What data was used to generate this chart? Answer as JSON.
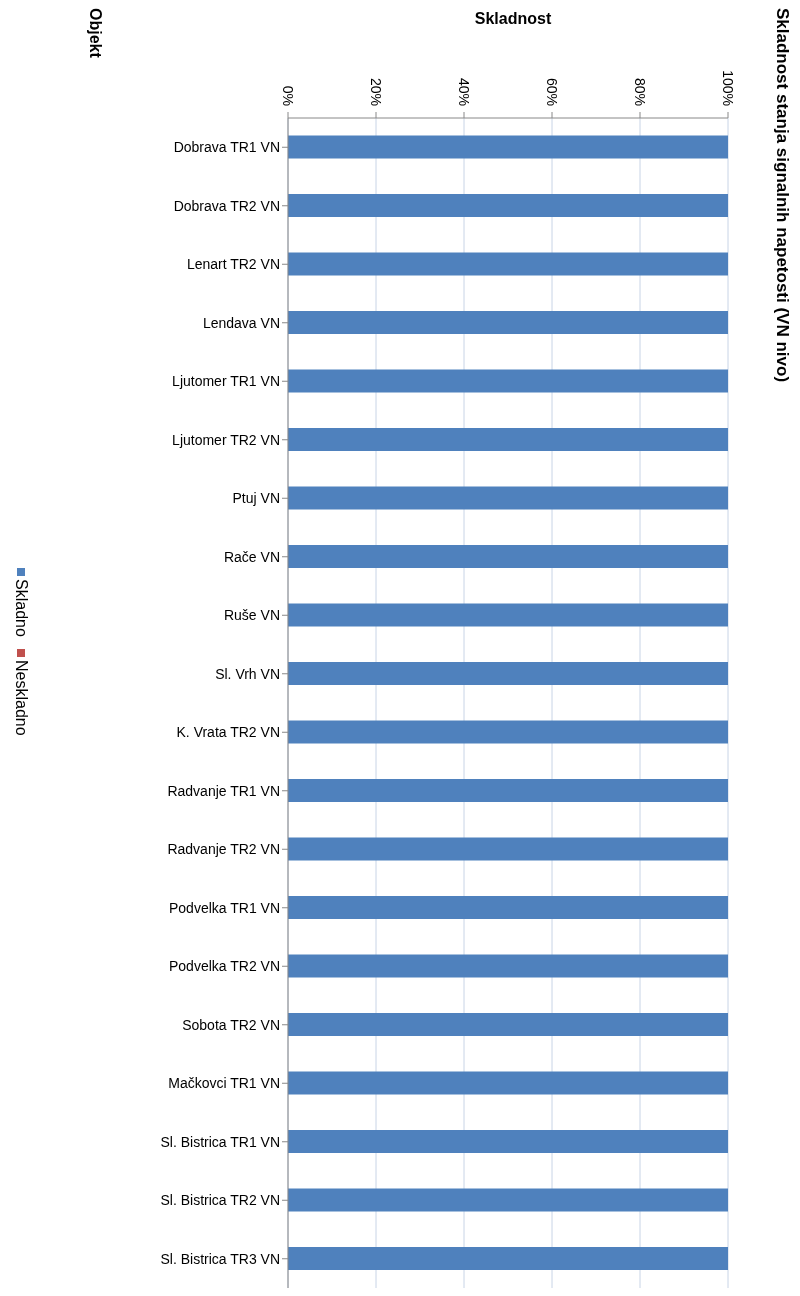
{
  "chart_data": {
    "type": "bar",
    "orientation": "horizontal",
    "stacked": true,
    "title": "Skladnost stanja signalnih napetosti (VN nivo)",
    "xlabel": "Skladnost",
    "ylabel": "Objekt",
    "categories": [
      "Dobrava TR1 VN",
      "Dobrava TR2 VN",
      "Lenart TR2 VN",
      "Lendava VN",
      "Ljutomer TR1 VN",
      "Ljutomer TR2 VN",
      "Ptuj VN",
      "Rače VN",
      "Ruše VN",
      "Sl. Vrh VN",
      "K. Vrata TR2 VN",
      "Radvanje TR1 VN",
      "Radvanje TR2 VN",
      "Podvelka TR1 VN",
      "Podvelka TR2 VN",
      "Sobota TR2 VN",
      "Mačkovci TR1 VN",
      "Sl. Bistrica TR1 VN",
      "Sl. Bistrica TR2 VN",
      "Sl. Bistrica TR3 VN"
    ],
    "series": [
      {
        "name": "Skladno",
        "color": "#4f81bd",
        "values": [
          100,
          100,
          100,
          100,
          100,
          100,
          100,
          100,
          100,
          100,
          100,
          100,
          100,
          100,
          100,
          100,
          100,
          100,
          100,
          100
        ]
      },
      {
        "name": "Neskladno",
        "color": "#c0504d",
        "values": [
          0,
          0,
          0,
          0,
          0,
          0,
          0,
          0,
          0,
          0,
          0,
          0,
          0,
          0,
          0,
          0,
          0,
          0,
          0,
          0
        ]
      }
    ],
    "xlim": [
      0,
      100
    ],
    "xticks": [
      {
        "value": 0,
        "label": "0%"
      },
      {
        "value": 20,
        "label": "20%"
      },
      {
        "value": 40,
        "label": "40%"
      },
      {
        "value": 60,
        "label": "60%"
      },
      {
        "value": 80,
        "label": "80%"
      },
      {
        "value": 100,
        "label": "100%"
      }
    ],
    "grid": "x",
    "legend": "left"
  }
}
